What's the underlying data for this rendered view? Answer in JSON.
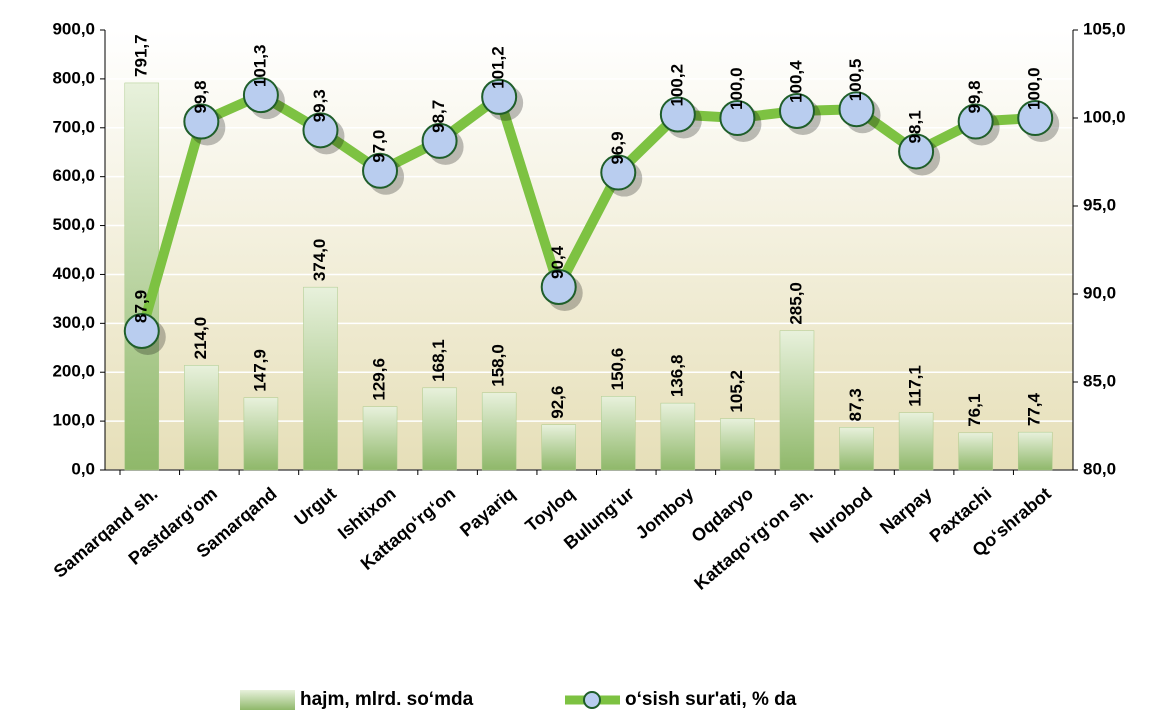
{
  "chart_data": {
    "type": "bar",
    "categories": [
      "Samarqand sh.",
      "Pastdarg‘om",
      "Samarqand",
      "Urgut",
      "Ishtixon",
      "Kattaqo‘rg‘on",
      "Payariq",
      "Toyloq",
      "Bulung‘ur",
      "Jomboy",
      "Oqdaryo",
      "Kattaqo‘rg‘on sh.",
      "Nurobod",
      "Narpay",
      "Paxtachi",
      "Qo‘shrabot"
    ],
    "series": [
      {
        "name": "hajm, mlrd. so‘mda",
        "type": "bar",
        "color": "#a9c98a",
        "values": [
          791.7,
          214.0,
          147.9,
          374.0,
          129.6,
          168.1,
          158.0,
          92.6,
          150.6,
          136.8,
          105.2,
          285.0,
          87.3,
          117.1,
          76.1,
          77.4
        ],
        "value_labels": [
          "791,7",
          "214,0",
          "147,9",
          "374,0",
          "129,6",
          "168,1",
          "158,0",
          "92,6",
          "150,6",
          "136,8",
          "105,2",
          "285,0",
          "87,3",
          "117,1",
          "76,1",
          "77,4"
        ]
      },
      {
        "name": "o‘sish sur'ati, % da",
        "type": "line",
        "axis": "y2",
        "color": "#7dc242",
        "marker_color": "#b9cdef",
        "values": [
          87.9,
          99.8,
          101.3,
          99.3,
          97.0,
          98.7,
          101.2,
          90.4,
          96.9,
          100.2,
          100.0,
          100.4,
          100.5,
          98.1,
          99.8,
          100.0
        ],
        "value_labels": [
          "87,9",
          "99,8",
          "101,3",
          "99,3",
          "97,0",
          "98,7",
          "101,2",
          "90,4",
          "96,9",
          "100,2",
          "100,0",
          "100,4",
          "100,5",
          "98,1",
          "99,8",
          "100,0"
        ]
      }
    ],
    "ylim": [
      0,
      900
    ],
    "yticks": [
      {
        "value": 0,
        "label": "0,0"
      },
      {
        "value": 100,
        "label": "100,0"
      },
      {
        "value": 200,
        "label": "200,0"
      },
      {
        "value": 300,
        "label": "300,0"
      },
      {
        "value": 400,
        "label": "400,0"
      },
      {
        "value": 500,
        "label": "500,0"
      },
      {
        "value": 600,
        "label": "600,0"
      },
      {
        "value": 700,
        "label": "700,0"
      },
      {
        "value": 800,
        "label": "800,0"
      },
      {
        "value": 900,
        "label": "900,0"
      }
    ],
    "y2lim": [
      80,
      105
    ],
    "y2ticks": [
      {
        "value": 80,
        "label": "80,0"
      },
      {
        "value": 85,
        "label": "85,0"
      },
      {
        "value": 90,
        "label": "90,0"
      },
      {
        "value": 95,
        "label": "95,0"
      },
      {
        "value": 100,
        "label": "100,0"
      },
      {
        "value": 105,
        "label": "105,0"
      }
    ],
    "grid": true,
    "legend": "bottom"
  }
}
